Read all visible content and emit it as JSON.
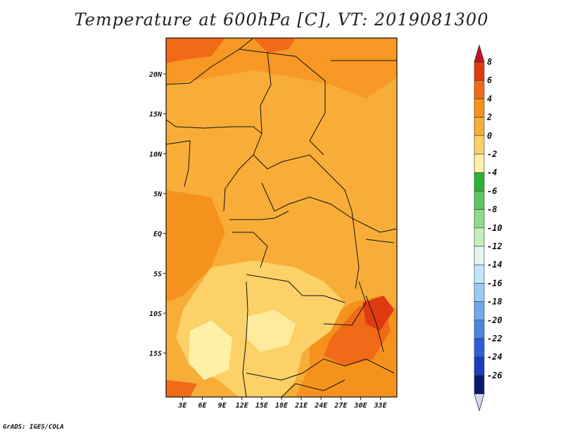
{
  "title": "Temperature at 600hPa [C], VT: 2019081300",
  "credit": "GrADS: IGES/COLA",
  "map": {
    "lat_labels": [
      {
        "label": "20N",
        "lat": 20
      },
      {
        "label": "15N",
        "lat": 15
      },
      {
        "label": "10N",
        "lat": 10
      },
      {
        "label": "5N",
        "lat": 5
      },
      {
        "label": "EQ",
        "lat": 0
      },
      {
        "label": "5S",
        "lat": -5
      },
      {
        "label": "10S",
        "lat": -10
      },
      {
        "label": "15S",
        "lat": -15
      }
    ],
    "lon_labels": [
      {
        "label": "3E",
        "lon": 3
      },
      {
        "label": "6E",
        "lon": 6
      },
      {
        "label": "9E",
        "lon": 9
      },
      {
        "label": "12E",
        "lon": 12
      },
      {
        "label": "15E",
        "lon": 15
      },
      {
        "label": "18E",
        "lon": 18
      },
      {
        "label": "21E",
        "lon": 21
      },
      {
        "label": "24E",
        "lon": 24
      },
      {
        "label": "27E",
        "lon": 27
      },
      {
        "label": "30E",
        "lon": 30
      },
      {
        "label": "33E",
        "lon": 33
      }
    ]
  },
  "colorbar": {
    "levels": [
      "8",
      "6",
      "4",
      "2",
      "0",
      "-2",
      "-4",
      "-6",
      "-8",
      "-10",
      "-12",
      "-14",
      "-16",
      "-18",
      "-20",
      "-22",
      "-24",
      "-26"
    ],
    "colors": [
      "#e03a10",
      "#f06a18",
      "#f5921e",
      "#f7ad38",
      "#fbd168",
      "#fff0a8",
      "#2ab432",
      "#5cc860",
      "#8fdc8a",
      "#c4eebc",
      "#e4f6f4",
      "#bfe6fa",
      "#99ccf4",
      "#6eaaec",
      "#4a86e0",
      "#2c60d4",
      "#1a3ebf",
      "#0c1870"
    ],
    "top_arrow_color": "#c8102a",
    "bottom_arrow_color": "#d4d6f2"
  }
}
